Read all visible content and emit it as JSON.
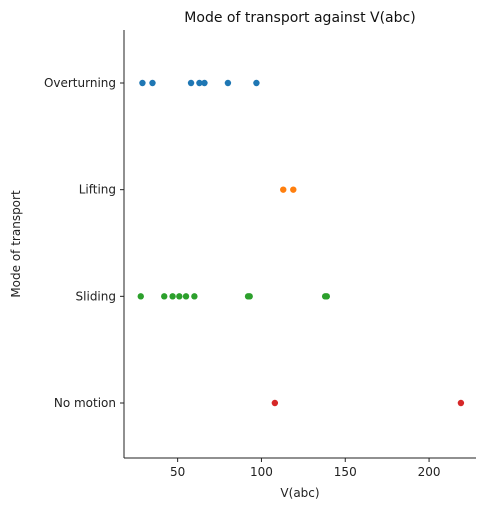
{
  "chart_data": {
    "type": "scatter",
    "title": "Mode of transport against V(abc)",
    "xlabel": "V(abc)",
    "ylabel": "Mode of transport",
    "xlim": [
      18,
      228
    ],
    "xticks": [
      50,
      100,
      150,
      200
    ],
    "grid": false,
    "categories": [
      "Overturning",
      "Lifting",
      "Sliding",
      "No motion"
    ],
    "series": [
      {
        "category": "Overturning",
        "color": "#1f77b4",
        "x": [
          29,
          35,
          58,
          63,
          66,
          80,
          97
        ]
      },
      {
        "category": "Lifting",
        "color": "#ff7f0e",
        "x": [
          113,
          119
        ]
      },
      {
        "category": "Sliding",
        "color": "#2ca02c",
        "x": [
          28,
          42,
          47,
          51,
          55,
          60,
          92,
          93,
          138,
          139
        ]
      },
      {
        "category": "No motion",
        "color": "#d62728",
        "x": [
          108,
          219
        ]
      }
    ]
  }
}
